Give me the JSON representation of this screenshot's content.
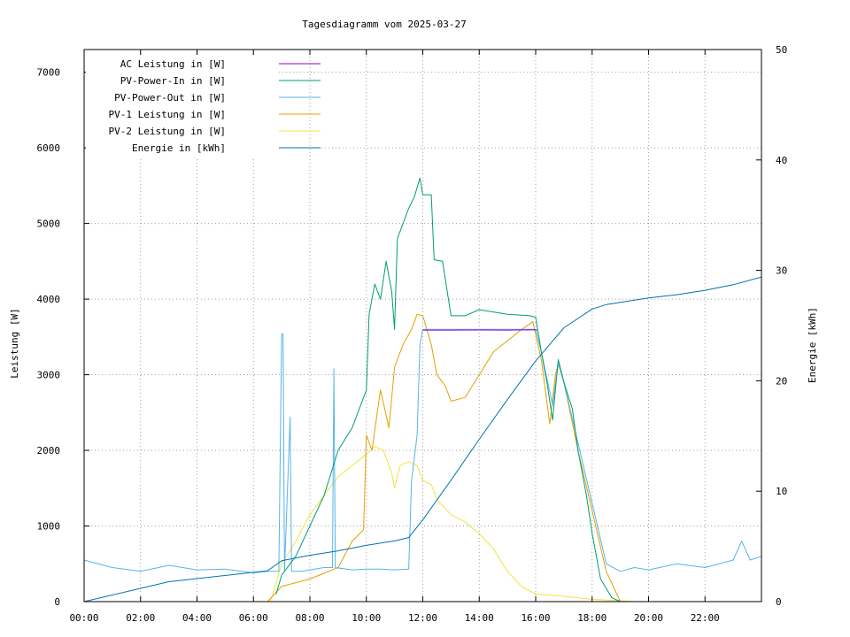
{
  "chart_data": {
    "type": "line",
    "title": "Tagesdiagramm vom 2025-03-27",
    "xlabel": "",
    "ylabel": "Leistung [W]",
    "y2label": "Energie [kWh]",
    "xlim": [
      0,
      24
    ],
    "ylim": [
      0,
      7300
    ],
    "y2lim": [
      0,
      50
    ],
    "grid": true,
    "legend_position": "top-left",
    "x_ticks": [
      {
        "value": 0,
        "label": "00:00"
      },
      {
        "value": 2,
        "label": "02:00"
      },
      {
        "value": 4,
        "label": "04:00"
      },
      {
        "value": 6,
        "label": "06:00"
      },
      {
        "value": 8,
        "label": "08:00"
      },
      {
        "value": 10,
        "label": "10:00"
      },
      {
        "value": 12,
        "label": "12:00"
      },
      {
        "value": 14,
        "label": "14:00"
      },
      {
        "value": 16,
        "label": "16:00"
      },
      {
        "value": 18,
        "label": "18:00"
      },
      {
        "value": 20,
        "label": "20:00"
      },
      {
        "value": 22,
        "label": "22:00"
      }
    ],
    "y_ticks": [
      {
        "value": 0,
        "label": "0"
      },
      {
        "value": 1000,
        "label": "1000"
      },
      {
        "value": 2000,
        "label": "2000"
      },
      {
        "value": 3000,
        "label": "3000"
      },
      {
        "value": 4000,
        "label": "4000"
      },
      {
        "value": 5000,
        "label": "5000"
      },
      {
        "value": 6000,
        "label": "6000"
      },
      {
        "value": 7000,
        "label": "7000"
      }
    ],
    "y2_ticks": [
      {
        "value": 0,
        "label": "0"
      },
      {
        "value": 10,
        "label": "10"
      },
      {
        "value": 20,
        "label": "20"
      },
      {
        "value": 30,
        "label": "30"
      },
      {
        "value": 40,
        "label": "40"
      },
      {
        "value": 50,
        "label": "50"
      }
    ],
    "series": [
      {
        "name": "AC Leistung in [W]",
        "color": "#9400d3",
        "axis": "y",
        "x": [
          12.0,
          13.0,
          14.0,
          15.0,
          15.9,
          16.05
        ],
        "y": [
          3590,
          3590,
          3592,
          3590,
          3595,
          3590
        ]
      },
      {
        "name": "PV-Power-In in [W]",
        "color": "#009e73",
        "axis": "y",
        "x": [
          6.8,
          7.0,
          7.5,
          8.0,
          8.5,
          9.0,
          9.5,
          10.0,
          10.1,
          10.3,
          10.5,
          10.7,
          10.9,
          11.0,
          11.1,
          11.3,
          11.5,
          11.7,
          11.9,
          12.0,
          12.3,
          12.4,
          12.7,
          13.0,
          13.5,
          14.0,
          15.0,
          15.8,
          16.0,
          16.2,
          16.4,
          16.6,
          16.7,
          16.8,
          17.0,
          17.3,
          17.5,
          17.8,
          18.0,
          18.3,
          18.7,
          19.0
        ],
        "y": [
          100,
          350,
          600,
          1000,
          1400,
          2000,
          2300,
          2800,
          3800,
          4200,
          4000,
          4500,
          4100,
          3600,
          4800,
          5000,
          5200,
          5350,
          5600,
          5380,
          5380,
          4520,
          4500,
          3780,
          3780,
          3860,
          3800,
          3780,
          3760,
          3300,
          2900,
          2400,
          2800,
          3200,
          2900,
          2550,
          2000,
          1400,
          900,
          300,
          50,
          0
        ]
      },
      {
        "name": "PV-Power-Out in [W]",
        "color": "#56b4e9",
        "axis": "y",
        "x": [
          0,
          1,
          2,
          3,
          4,
          5,
          6,
          6.5,
          6.9,
          7.0,
          7.05,
          7.1,
          7.3,
          7.35,
          7.4,
          7.7,
          8.0,
          8.5,
          8.8,
          8.85,
          8.9,
          9.5,
          10.0,
          10.5,
          11.0,
          11.5,
          11.6,
          11.8,
          11.9,
          12.0,
          13.0,
          14.0,
          15.0,
          16.0,
          16.2,
          16.6,
          16.8,
          17.0,
          17.5,
          18.0,
          18.5,
          19.0,
          19.5,
          20.0,
          21.0,
          22.0,
          23.0,
          23.3,
          23.6,
          24.0
        ],
        "y": [
          550,
          450,
          400,
          480,
          420,
          430,
          380,
          400,
          400,
          3540,
          3540,
          400,
          2440,
          400,
          400,
          400,
          420,
          450,
          450,
          3080,
          450,
          420,
          430,
          430,
          420,
          430,
          1600,
          2200,
          3400,
          3600,
          3600,
          3600,
          3600,
          3600,
          3300,
          2600,
          3150,
          2900,
          2100,
          1300,
          500,
          400,
          450,
          420,
          500,
          450,
          550,
          800,
          550,
          600
        ]
      },
      {
        "name": "PV-1 Leistung in [W]",
        "color": "#e69f00",
        "axis": "y",
        "x": [
          6.5,
          7.0,
          8.0,
          9.0,
          9.5,
          9.9,
          10.0,
          10.2,
          10.5,
          10.8,
          11.0,
          11.3,
          11.6,
          11.8,
          12.0,
          12.3,
          12.5,
          12.8,
          13.0,
          13.5,
          14.0,
          14.5,
          15.0,
          15.5,
          15.9,
          16.2,
          16.5,
          16.7,
          16.8,
          17.0,
          17.5,
          18.0,
          18.5,
          19.0
        ],
        "y": [
          0,
          200,
          300,
          450,
          800,
          950,
          2200,
          2000,
          2800,
          2300,
          3100,
          3400,
          3600,
          3800,
          3780,
          3400,
          3000,
          2850,
          2650,
          2700,
          3000,
          3300,
          3450,
          3600,
          3700,
          3200,
          2350,
          3000,
          3150,
          2900,
          2000,
          1200,
          400,
          0
        ]
      },
      {
        "name": "PV-2 Leistung in [W]",
        "color": "#f0e442",
        "axis": "y",
        "x": [
          6.6,
          7.0,
          7.5,
          8.0,
          8.5,
          9.0,
          9.5,
          10.0,
          10.3,
          10.6,
          10.9,
          11.0,
          11.2,
          11.5,
          11.8,
          12.0,
          12.3,
          12.5,
          13.0,
          13.5,
          14.0,
          14.5,
          15.0,
          15.5,
          16.0,
          17.0,
          18.0,
          19.0,
          19.5
        ],
        "y": [
          0,
          500,
          800,
          1150,
          1400,
          1650,
          1800,
          1950,
          2050,
          2000,
          1700,
          1500,
          1800,
          1850,
          1800,
          1600,
          1550,
          1350,
          1150,
          1050,
          900,
          700,
          400,
          200,
          100,
          70,
          30,
          10,
          0
        ]
      },
      {
        "name": "Energie in [kWh]",
        "color": "#0072b2",
        "axis": "y2",
        "x": [
          0,
          3,
          6.5,
          7.0,
          8.0,
          9.0,
          10.0,
          11.0,
          11.5,
          12.0,
          13.0,
          14.0,
          15.0,
          16.0,
          17.0,
          18.0,
          18.5,
          19.0,
          20.0,
          21.0,
          22.0,
          23.0,
          24.0
        ],
        "y": [
          0,
          1.8,
          2.8,
          3.7,
          4.2,
          4.6,
          5.1,
          5.5,
          5.8,
          7.4,
          11.0,
          14.7,
          18.3,
          21.8,
          24.8,
          26.5,
          26.9,
          27.1,
          27.5,
          27.8,
          28.2,
          28.7,
          29.4
        ]
      }
    ]
  }
}
